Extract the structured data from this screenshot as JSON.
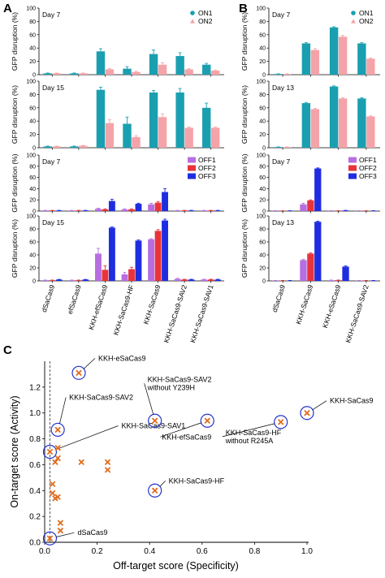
{
  "colors": {
    "ON1": "#1a9fb0",
    "ON2": "#f4a3a8",
    "OFF1": "#b76ee0",
    "OFF2": "#e8333a",
    "OFF3": "#1f2de0",
    "marker": "#e06c1c",
    "circle": "#2233cc"
  },
  "chart_data": [
    {
      "panel": "A",
      "type": "bar",
      "day": "Day 7",
      "ylabel": "GFP disruption (%)",
      "ylim": [
        0,
        100
      ],
      "yticks": [
        0,
        20,
        40,
        60,
        80,
        100
      ],
      "categories": [
        "dSaCas9",
        "efSaCas9",
        "KKH-efSaCas9",
        "KKH-SaCas9-HF",
        "KKH-SaCas9",
        "KKH-SaCas9-SAV2",
        "KKH-SaCas9-SAV1"
      ],
      "legend": [
        "ON1",
        "ON2"
      ],
      "legend_position": "top-right",
      "series": [
        {
          "name": "ON1",
          "values": [
            2,
            2,
            35,
            9,
            31,
            28,
            15
          ],
          "errors": [
            0.5,
            0.5,
            4,
            3,
            6,
            5,
            2
          ]
        },
        {
          "name": "ON2",
          "values": [
            2,
            2,
            8,
            4,
            15,
            8,
            6
          ],
          "errors": [
            0.5,
            0.5,
            1,
            1,
            3,
            1,
            1
          ]
        }
      ]
    },
    {
      "panel": "A",
      "type": "bar",
      "day": "Day 15",
      "ylabel": "GFP disruption (%)",
      "ylim": [
        0,
        100
      ],
      "yticks": [
        0,
        20,
        40,
        60,
        80,
        100
      ],
      "categories": [
        "dSaCas9",
        "efSaCas9",
        "KKH-efSaCas9",
        "KKH-SaCas9-HF",
        "KKH-SaCas9",
        "KKH-SaCas9-SAV2",
        "KKH-SaCas9-SAV1"
      ],
      "series": [
        {
          "name": "ON1",
          "values": [
            2,
            2,
            87,
            36,
            83,
            83,
            60
          ],
          "errors": [
            0.5,
            0.5,
            4,
            10,
            3,
            6,
            7
          ]
        },
        {
          "name": "ON2",
          "values": [
            2,
            3,
            37,
            16,
            46,
            30,
            30
          ],
          "errors": [
            0.5,
            0.5,
            5,
            2,
            5,
            1,
            1
          ]
        }
      ]
    },
    {
      "panel": "A",
      "type": "bar",
      "day": "Day 7",
      "ylabel": "GFP disruption (%)",
      "ylim": [
        0,
        100
      ],
      "yticks": [
        0,
        20,
        40,
        60,
        80,
        100
      ],
      "categories": [
        "dSaCas9",
        "efSaCas9",
        "KKH-efSaCas9",
        "KKH-SaCas9-HF",
        "KKH-SaCas9",
        "KKH-SaCas9-SAV2",
        "KKH-SaCas9-SAV1"
      ],
      "legend": [
        "OFF1",
        "OFF2",
        "OFF3"
      ],
      "legend_position": "top-right",
      "series": [
        {
          "name": "OFF1",
          "values": [
            1,
            1,
            4,
            3,
            12,
            1,
            1
          ],
          "errors": [
            0.3,
            0.3,
            1,
            1,
            2,
            0.3,
            0.3
          ]
        },
        {
          "name": "OFF2",
          "values": [
            1,
            1,
            3,
            3,
            15,
            1,
            1
          ],
          "errors": [
            0.3,
            0.3,
            1,
            1,
            2,
            0.3,
            0.3
          ]
        },
        {
          "name": "OFF3",
          "values": [
            1,
            1,
            18,
            13,
            34,
            1,
            1
          ],
          "errors": [
            0.3,
            0.3,
            3,
            1,
            6,
            0.3,
            0.3
          ]
        }
      ]
    },
    {
      "panel": "A",
      "type": "bar",
      "day": "Day 15",
      "ylabel": "GFP disruption (%)",
      "ylim": [
        0,
        100
      ],
      "yticks": [
        0,
        20,
        40,
        60,
        80,
        100
      ],
      "categories": [
        "dSaCas9",
        "efSaCas9",
        "KKH-efSaCas9",
        "KKH-SaCas9-HF",
        "KKH-SaCas9",
        "KKH-SaCas9-SAV2",
        "KKH-SaCas9-SAV1"
      ],
      "series": [
        {
          "name": "OFF1",
          "values": [
            1,
            1,
            42,
            10,
            64,
            3,
            2
          ],
          "errors": [
            0.3,
            0.3,
            8,
            3,
            1,
            1,
            0.5
          ]
        },
        {
          "name": "OFF2",
          "values": [
            1,
            1,
            17,
            18,
            77,
            2,
            2
          ],
          "errors": [
            0.3,
            0.3,
            6,
            3,
            2,
            0.5,
            0.5
          ]
        },
        {
          "name": "OFF3",
          "values": [
            2,
            2,
            82,
            62,
            93,
            2,
            2
          ],
          "errors": [
            0.3,
            0.3,
            1,
            1,
            2,
            0.5,
            0.5
          ]
        }
      ]
    },
    {
      "panel": "B",
      "type": "bar",
      "day": "Day 7",
      "ylabel": "GFP disruption (%)",
      "ylim": [
        0,
        100
      ],
      "yticks": [
        0,
        20,
        40,
        60,
        80,
        100
      ],
      "categories": [
        "dSaCas9",
        "KKH-SaCas9",
        "KKH-eSaCas9",
        "KKH-SaCas9-SAV2"
      ],
      "legend": [
        "ON1",
        "ON2"
      ],
      "legend_position": "top-right",
      "series": [
        {
          "name": "ON1",
          "values": [
            1,
            47,
            71,
            47
          ],
          "errors": [
            0.3,
            1,
            1,
            1
          ]
        },
        {
          "name": "ON2",
          "values": [
            1,
            37,
            57,
            24
          ],
          "errors": [
            0.3,
            2,
            2,
            1
          ]
        }
      ]
    },
    {
      "panel": "B",
      "type": "bar",
      "day": "Day 13",
      "ylabel": "GFP disruption (%)",
      "ylim": [
        0,
        100
      ],
      "yticks": [
        0,
        20,
        40,
        60,
        80,
        100
      ],
      "categories": [
        "dSaCas9",
        "KKH-SaCas9",
        "KKH-eSaCas9",
        "KKH-SaCas9-SAV2"
      ],
      "series": [
        {
          "name": "ON1",
          "values": [
            1,
            67,
            92,
            74
          ],
          "errors": [
            0.3,
            1,
            1,
            1
          ]
        },
        {
          "name": "ON2",
          "values": [
            1,
            58,
            74,
            47
          ],
          "errors": [
            0.3,
            1,
            1,
            1
          ]
        }
      ]
    },
    {
      "panel": "B",
      "type": "bar",
      "day": "Day 7",
      "ylabel": "GFP disruption (%)",
      "ylim": [
        0,
        100
      ],
      "yticks": [
        0,
        20,
        40,
        60,
        80,
        100
      ],
      "categories": [
        "dSaCas9",
        "KKH-SaCas9",
        "KKH-eSaCas9",
        "KKH-SaCas9-SAV2"
      ],
      "legend": [
        "OFF1",
        "OFF2",
        "OFF3"
      ],
      "legend_position": "top-right",
      "series": [
        {
          "name": "OFF1",
          "values": [
            0.5,
            12,
            0.5,
            0.5
          ],
          "errors": [
            0.2,
            2,
            0.2,
            0.2
          ]
        },
        {
          "name": "OFF2",
          "values": [
            0.5,
            19,
            0.5,
            0.5
          ],
          "errors": [
            0.2,
            1,
            0.2,
            0.2
          ]
        },
        {
          "name": "OFF3",
          "values": [
            0.5,
            76,
            1,
            0.5
          ],
          "errors": [
            0.2,
            1,
            0.3,
            0.2
          ]
        }
      ]
    },
    {
      "panel": "B",
      "type": "bar",
      "day": "Day 13",
      "ylabel": "GFP disruption (%)",
      "ylim": [
        0,
        100
      ],
      "yticks": [
        0,
        20,
        40,
        60,
        80,
        100
      ],
      "categories": [
        "dSaCas9",
        "KKH-SaCas9",
        "KKH-eSaCas9",
        "KKH-SaCas9-SAV2"
      ],
      "series": [
        {
          "name": "OFF1",
          "values": [
            0.5,
            32,
            1,
            0.5
          ],
          "errors": [
            0.2,
            1,
            0.3,
            0.2
          ]
        },
        {
          "name": "OFF2",
          "values": [
            0.5,
            42,
            1,
            0.5
          ],
          "errors": [
            0.2,
            1,
            0.3,
            0.2
          ]
        },
        {
          "name": "OFF3",
          "values": [
            0.5,
            91,
            22,
            0.5
          ],
          "errors": [
            0.2,
            1,
            1,
            0.2
          ]
        }
      ]
    },
    {
      "panel": "C",
      "type": "scatter",
      "xlabel": "Off-target score (Specificity)",
      "ylabel": "On-target score (Activity)",
      "xlim": [
        0,
        1
      ],
      "ylim": [
        0,
        1.4
      ],
      "xticks": [
        "0.0",
        "0.2",
        "0.4",
        "0.6",
        "0.8",
        "1.0"
      ],
      "yticks": [
        "0.0",
        "0.2",
        "0.4",
        "0.6",
        "0.8",
        "1.0",
        "1.2"
      ],
      "reference_x": 0.02,
      "points": [
        {
          "x": 0.02,
          "y": 0.03,
          "label": "dSaCas9"
        },
        {
          "x": 0.02,
          "y": 0.7,
          "label": "KKH-SaCas9-SAV1"
        },
        {
          "x": 0.05,
          "y": 0.87,
          "label": "KKH-SaCas9-SAV2"
        },
        {
          "x": 0.13,
          "y": 1.31,
          "label": "KKH-eSaCas9"
        },
        {
          "x": 0.42,
          "y": 0.94,
          "label": "KKH-SaCas9-SAV2 without Y239H"
        },
        {
          "x": 0.62,
          "y": 0.94,
          "label": "KKH-efSaCas9"
        },
        {
          "x": 0.42,
          "y": 0.4,
          "label": "KKH-SaCas9-HF"
        },
        {
          "x": 0.9,
          "y": 0.93,
          "label": "KKH-SaCas9-HF without R245A"
        },
        {
          "x": 1.0,
          "y": 1.0,
          "label": "KKH-SaCas9"
        },
        {
          "x": 0.03,
          "y": 0.45,
          "label": ""
        },
        {
          "x": 0.03,
          "y": 0.38,
          "label": ""
        },
        {
          "x": 0.04,
          "y": 0.34,
          "label": ""
        },
        {
          "x": 0.05,
          "y": 0.35,
          "label": ""
        },
        {
          "x": 0.04,
          "y": 0.62,
          "label": ""
        },
        {
          "x": 0.05,
          "y": 0.65,
          "label": ""
        },
        {
          "x": 0.05,
          "y": 0.73,
          "label": ""
        },
        {
          "x": 0.14,
          "y": 0.62,
          "label": ""
        },
        {
          "x": 0.24,
          "y": 0.62,
          "label": ""
        },
        {
          "x": 0.24,
          "y": 0.56,
          "label": ""
        },
        {
          "x": 0.06,
          "y": 0.15,
          "label": ""
        },
        {
          "x": 0.06,
          "y": 0.09,
          "label": ""
        }
      ]
    }
  ],
  "panel_labels": [
    "A",
    "B",
    "C"
  ]
}
